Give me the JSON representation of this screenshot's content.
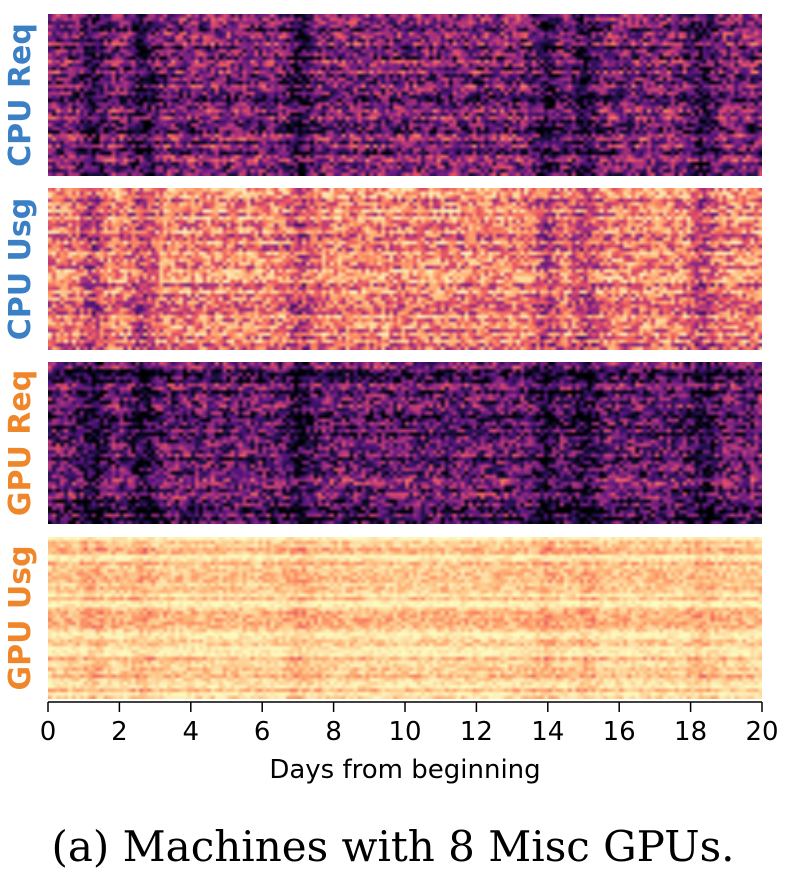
{
  "chart_data": {
    "type": "heatmap",
    "xlabel": "Days from beginning",
    "xlim": [
      0,
      20
    ],
    "x_ticks": [
      0,
      2,
      4,
      6,
      8,
      10,
      12,
      14,
      16,
      18,
      20
    ],
    "colormap": "magma",
    "panels": [
      {
        "label": "CPU Req",
        "label_color": "#3b7fc4",
        "mean_intensity": 0.28
      },
      {
        "label": "CPU Usg",
        "label_color": "#3b7fc4",
        "mean_intensity": 0.62
      },
      {
        "label": "GPU Req",
        "label_color": "#f0862a",
        "mean_intensity": 0.22
      },
      {
        "label": "GPU Usg",
        "label_color": "#f0862a",
        "mean_intensity": 0.82
      }
    ],
    "dark_bands_days": [
      1.2,
      2.6,
      7.0,
      13.9,
      15.0,
      18.3
    ]
  },
  "caption": "(a) Machines with 8 Misc GPUs."
}
